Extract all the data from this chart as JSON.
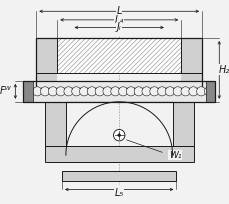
{
  "bg_color": "#f2f2f2",
  "lc": "#1a1a1a",
  "dc": "#1a1a1a",
  "fc_light": "#e8e8e8",
  "fc_mid": "#d0d0d0",
  "fc_dark": "#b0b0b0",
  "fc_hatch": "#c8c8c8",
  "figsize": [
    2.3,
    2.04
  ],
  "dpi": 100,
  "labels": {
    "L": "L",
    "L4": "L₄",
    "JL": "Jₗ",
    "H2": "H₂",
    "FW": "Fᵂ",
    "W1": "W₁",
    "L5": "L₅"
  }
}
